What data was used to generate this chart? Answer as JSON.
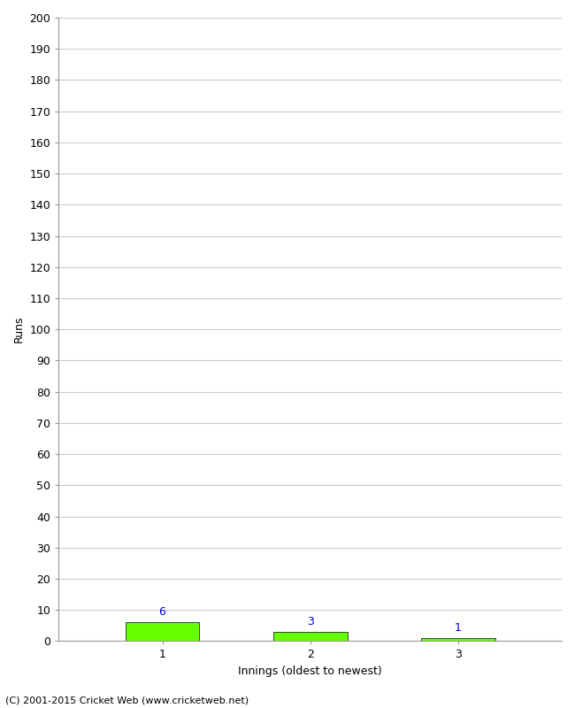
{
  "categories": [
    "1",
    "2",
    "3"
  ],
  "values": [
    6,
    3,
    1
  ],
  "bar_color": "#66ff00",
  "bar_edge_color": "#000000",
  "value_labels": [
    "6",
    "3",
    "1"
  ],
  "value_label_color": "#0000cc",
  "xlabel": "Innings (oldest to newest)",
  "ylabel": "Runs",
  "ylim": [
    0,
    200
  ],
  "yticks": [
    0,
    10,
    20,
    30,
    40,
    50,
    60,
    70,
    80,
    90,
    100,
    110,
    120,
    130,
    140,
    150,
    160,
    170,
    180,
    190,
    200
  ],
  "footer": "(C) 2001-2015 Cricket Web (www.cricketweb.net)",
  "background_color": "#ffffff",
  "grid_color": "#cccccc",
  "bar_width": 0.5,
  "xlabel_fontsize": 9,
  "ylabel_fontsize": 9,
  "tick_fontsize": 9,
  "value_label_fontsize": 9,
  "footer_fontsize": 8
}
